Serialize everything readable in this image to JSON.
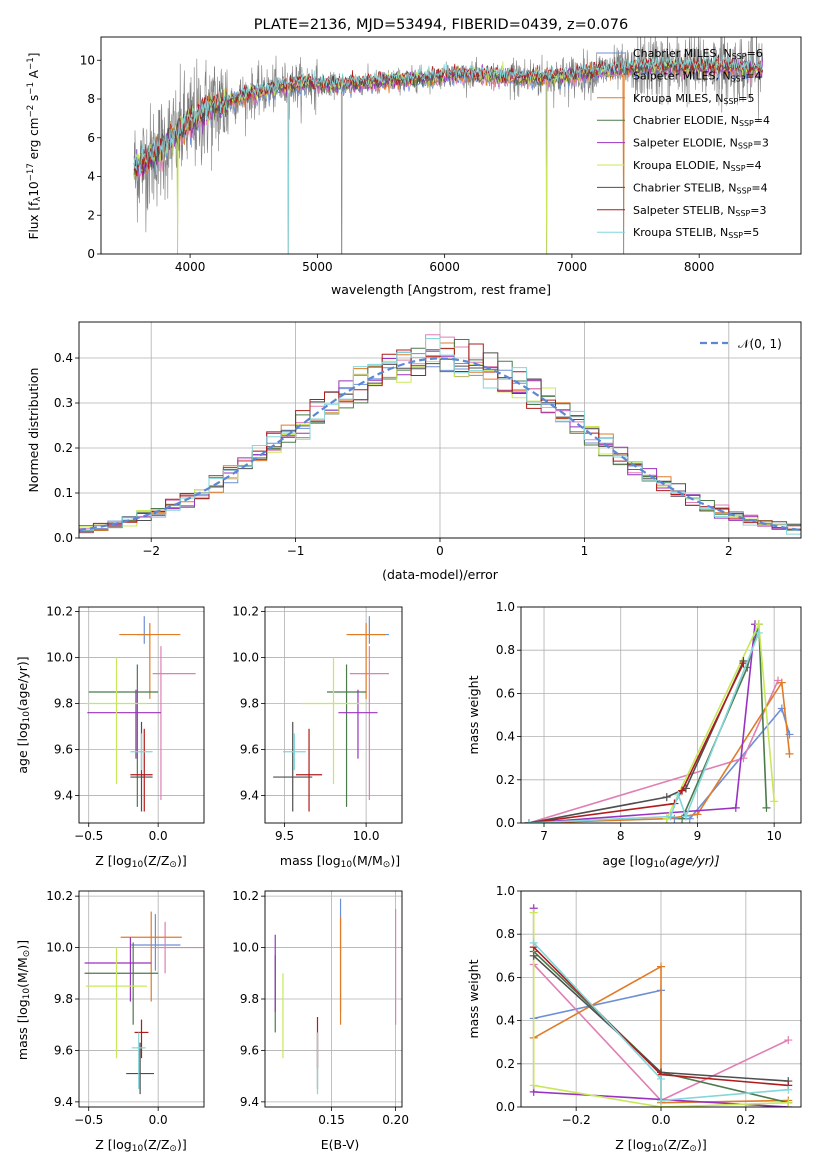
{
  "colors": {
    "Chabrier MILES": "#6d8fd6",
    "Salpeter MILES": "#e07fb4",
    "Kroupa MILES": "#e07b28",
    "Chabrier ELODIE": "#4b7a4b",
    "Salpeter ELODIE": "#9932c0",
    "Kroupa ELODIE": "#c8e85a",
    "Chabrier STELIB": "#4f4f4f",
    "Salpeter STELIB": "#b01c1c",
    "Kroupa STELIB": "#83d6da",
    "data": "#7f7f7f",
    "gauss": "#5b87d5"
  },
  "chart_data": [
    {
      "id": "spectrum",
      "type": "line",
      "title": "PLATE=2136, MJD=53494, FIBERID=0439, z=0.076",
      "xlabel": "wavelength [Angstrom, rest frame]",
      "ylabel_main": "Flux [f",
      "ylabel_sub": "λ",
      "ylabel_rest": "10",
      "ylabel_exp": "−17",
      "ylabel_tail": " erg cm",
      "ylabel_exp2": "−2",
      "ylabel_tail2": " s",
      "ylabel_exp3": "−1",
      "ylabel_tail3": " A",
      "ylabel_exp4": "−1",
      "ylabel_end": "]",
      "xlim": [
        3300,
        8800
      ],
      "ylim": [
        0,
        11.2
      ],
      "xticks": [
        4000,
        5000,
        6000,
        7000,
        8000
      ],
      "yticks": [
        0,
        2,
        4,
        6,
        8,
        10
      ],
      "grid": false,
      "legend_position": "top-right",
      "continuum_x": [
        3560,
        3700,
        3900,
        4100,
        4300,
        4500,
        4700,
        4900,
        5100,
        5300,
        5500,
        5700,
        5900,
        6100,
        6300,
        6500,
        6700,
        6900,
        7100,
        7300,
        7500,
        7700,
        7900,
        8100,
        8300,
        8500
      ],
      "continuum_y": [
        4.4,
        5.0,
        6.2,
        7.3,
        7.9,
        8.3,
        8.6,
        8.8,
        8.7,
        8.8,
        8.9,
        9.0,
        9.1,
        9.3,
        9.2,
        9.1,
        9.1,
        9.1,
        9.3,
        9.5,
        9.6,
        9.7,
        9.6,
        9.7,
        9.6,
        9.5
      ],
      "legend": [
        {
          "label": "Chabrier MILES, N",
          "sub": "SSP",
          "n": "=6"
        },
        {
          "label": "Salpeter MILES, N",
          "sub": "SSP",
          "n": "=4"
        },
        {
          "label": "Kroupa MILES, N",
          "sub": "SSP",
          "n": "=5"
        },
        {
          "label": "Chabrier ELODIE, N",
          "sub": "SSP",
          "n": "=4"
        },
        {
          "label": "Salpeter ELODIE, N",
          "sub": "SSP",
          "n": "=3"
        },
        {
          "label": "Kroupa ELODIE, N",
          "sub": "SSP",
          "n": "=4"
        },
        {
          "label": "Chabrier STELIB, N",
          "sub": "SSP",
          "n": "=4"
        },
        {
          "label": "Salpeter STELIB, N",
          "sub": "SSP",
          "n": "=3"
        },
        {
          "label": "Kroupa STELIB, N",
          "sub": "SSP",
          "n": "=5"
        }
      ]
    },
    {
      "id": "residuals",
      "type": "histogram",
      "xlabel": "(data-model)/error",
      "ylabel": "Normed distribution",
      "xlim": [
        -2.5,
        2.5
      ],
      "ylim": [
        0,
        0.48
      ],
      "xticks": [
        -2,
        -1,
        0,
        1,
        2
      ],
      "yticks": [
        0.0,
        0.1,
        0.2,
        0.3,
        0.4
      ],
      "grid": true,
      "legend_position": "top-right",
      "gauss_label": "𝒩(0, 1)",
      "bin_width": 0.1,
      "bin_start": -2.5
    },
    {
      "id": "age_vs_Z",
      "type": "errorbar",
      "xlabel": "Z [log",
      "xlabel_sub": "10",
      "xlabel_rest": "(Z/Z",
      "xlabel_sub2": "⊙",
      "xlabel_end": ")]",
      "ylabel": "age  [log",
      "ylabel_sub": "10",
      "ylabel_rest": "(age/yr)]",
      "xlim": [
        -0.57,
        0.33
      ],
      "ylim": [
        9.28,
        10.22
      ],
      "xticks": [
        -0.5,
        0.0
      ],
      "yticks": [
        9.4,
        9.6,
        9.8,
        10.0,
        10.2
      ],
      "grid": true,
      "points": [
        {
          "series": "Chabrier MILES",
          "x": -0.1,
          "xerr": [
            0.05,
            0.05
          ],
          "y": 10.1,
          "yerr": [
            0.04,
            0.08
          ]
        },
        {
          "series": "Salpeter MILES",
          "x": 0.02,
          "xerr": [
            0.06,
            0.25
          ],
          "y": 9.93,
          "yerr": [
            0.55,
            0.12
          ]
        },
        {
          "series": "Kroupa MILES",
          "x": -0.06,
          "xerr": [
            0.22,
            0.22
          ],
          "y": 10.1,
          "yerr": [
            0.28,
            0.05
          ]
        },
        {
          "series": "Chabrier ELODIE",
          "x": -0.15,
          "xerr": [
            0.35,
            0.15
          ],
          "y": 9.85,
          "yerr": [
            0.5,
            0.12
          ]
        },
        {
          "series": "Salpeter ELODIE",
          "x": -0.16,
          "xerr": [
            0.35,
            0.18
          ],
          "y": 9.76,
          "yerr": [
            0.2,
            0.1
          ]
        },
        {
          "series": "Kroupa ELODIE",
          "x": -0.3,
          "xerr": [
            0.22,
            0.22
          ],
          "y": 9.8,
          "yerr": [
            0.35,
            0.2
          ]
        },
        {
          "series": "Chabrier STELIB",
          "x": -0.12,
          "xerr": [
            0.08,
            0.08
          ],
          "y": 9.48,
          "yerr": [
            0.15,
            0.24
          ]
        },
        {
          "series": "Salpeter STELIB",
          "x": -0.1,
          "xerr": [
            0.1,
            0.06
          ],
          "y": 9.49,
          "yerr": [
            0.16,
            0.2
          ]
        },
        {
          "series": "Kroupa STELIB",
          "x": -0.12,
          "xerr": [
            0.08,
            0.08
          ],
          "y": 9.59,
          "yerr": [
            0.08,
            0.08
          ]
        }
      ]
    },
    {
      "id": "age_vs_mass",
      "type": "errorbar",
      "xlabel": "mass [log",
      "xlabel_sub": "10",
      "xlabel_rest": "(M/M",
      "xlabel_sub2": "⊙",
      "xlabel_end": ")]",
      "xlim": [
        9.38,
        10.22
      ],
      "ylim": [
        9.28,
        10.22
      ],
      "xticks": [
        9.5,
        10.0
      ],
      "yticks": [
        9.4,
        9.6,
        9.8,
        10.0,
        10.2
      ],
      "grid": true,
      "points": [
        {
          "series": "Chabrier MILES",
          "x": 10.02,
          "xerr": [
            0.12,
            0.12
          ],
          "y": 10.1,
          "yerr": [
            0.04,
            0.08
          ]
        },
        {
          "series": "Salpeter MILES",
          "x": 10.02,
          "xerr": [
            0.12,
            0.12
          ],
          "y": 9.93,
          "yerr": [
            0.55,
            0.12
          ]
        },
        {
          "series": "Kroupa MILES",
          "x": 10.0,
          "xerr": [
            0.12,
            0.12
          ],
          "y": 10.1,
          "yerr": [
            0.28,
            0.05
          ]
        },
        {
          "series": "Chabrier ELODIE",
          "x": 9.88,
          "xerr": [
            0.12,
            0.12
          ],
          "y": 9.85,
          "yerr": [
            0.5,
            0.12
          ]
        },
        {
          "series": "Salpeter ELODIE",
          "x": 9.95,
          "xerr": [
            0.12,
            0.12
          ],
          "y": 9.76,
          "yerr": [
            0.2,
            0.1
          ]
        },
        {
          "series": "Kroupa ELODIE",
          "x": 9.8,
          "xerr": [
            0.2,
            0.2
          ],
          "y": 9.8,
          "yerr": [
            0.35,
            0.2
          ]
        },
        {
          "series": "Chabrier STELIB",
          "x": 9.55,
          "xerr": [
            0.12,
            0.12
          ],
          "y": 9.48,
          "yerr": [
            0.15,
            0.24
          ]
        },
        {
          "series": "Salpeter STELIB",
          "x": 9.65,
          "xerr": [
            0.08,
            0.08
          ],
          "y": 9.49,
          "yerr": [
            0.16,
            0.2
          ]
        },
        {
          "series": "Kroupa STELIB",
          "x": 9.56,
          "xerr": [
            0.07,
            0.07
          ],
          "y": 9.59,
          "yerr": [
            0.08,
            0.08
          ]
        }
      ]
    },
    {
      "id": "weight_vs_age",
      "type": "line",
      "xlabel": "age  [log",
      "xlabel_sub": "10",
      "xlabel_rest": "(age/yr)]",
      "ylabel": "mass weight",
      "xlim": [
        6.7,
        10.35
      ],
      "ylim": [
        0,
        1.0
      ],
      "xticks": [
        7,
        8,
        9,
        10
      ],
      "yticks": [
        0.0,
        0.2,
        0.4,
        0.6,
        0.8,
        1.0
      ],
      "grid": true,
      "series": [
        {
          "name": "Chabrier MILES",
          "x": [
            8.7,
            8.9,
            10.1,
            10.2
          ],
          "y": [
            0.02,
            0.02,
            0.53,
            0.41
          ]
        },
        {
          "name": "Salpeter MILES",
          "x": [
            6.8,
            9.6,
            10.05
          ],
          "y": [
            0.0,
            0.3,
            0.66
          ]
        },
        {
          "name": "Kroupa MILES",
          "x": [
            6.8,
            8.6,
            9.0,
            10.1,
            10.2
          ],
          "y": [
            0.0,
            0.02,
            0.04,
            0.65,
            0.32
          ]
        },
        {
          "name": "Chabrier ELODIE",
          "x": [
            8.8,
            9.65,
            9.8,
            9.9
          ],
          "y": [
            0.02,
            0.72,
            0.92,
            0.07
          ]
        },
        {
          "name": "Salpeter ELODIE",
          "x": [
            6.8,
            9.5,
            9.75
          ],
          "y": [
            0.0,
            0.07,
            0.92
          ]
        },
        {
          "name": "Kroupa ELODIE",
          "x": [
            8.6,
            9.8,
            10.0
          ],
          "y": [
            0.02,
            0.92,
            0.1
          ]
        },
        {
          "name": "Chabrier STELIB",
          "x": [
            6.8,
            8.6,
            8.85,
            9.6
          ],
          "y": [
            0.0,
            0.12,
            0.16,
            0.75
          ]
        },
        {
          "name": "Salpeter STELIB",
          "x": [
            6.8,
            8.7,
            8.8,
            9.6
          ],
          "y": [
            0.0,
            0.09,
            0.15,
            0.74
          ]
        },
        {
          "name": "Kroupa STELIB",
          "x": [
            6.8,
            8.65,
            8.75,
            8.85,
            9.8
          ],
          "y": [
            0.0,
            0.03,
            0.13,
            0.03,
            0.88
          ]
        }
      ]
    },
    {
      "id": "mass_vs_Z",
      "type": "errorbar",
      "xlabel": "Z [log",
      "xlabel_sub": "10",
      "xlabel_rest": "(Z/Z",
      "xlabel_sub2": "⊙",
      "xlabel_end": ")]",
      "ylabel": "mass [log",
      "ylabel_sub": "10",
      "ylabel_rest": "(M/M",
      "ylabel_sub2": "⊙",
      "ylabel_end": ")]",
      "xlim": [
        -0.57,
        0.33
      ],
      "ylim": [
        9.38,
        10.22
      ],
      "xticks": [
        -0.5,
        0.0
      ],
      "yticks": [
        9.4,
        9.6,
        9.8,
        10.0,
        10.2
      ],
      "grid": true,
      "points": [
        {
          "series": "Chabrier MILES",
          "x": -0.02,
          "xerr": [
            0.18,
            0.18
          ],
          "y": 10.01,
          "yerr": [
            0.1,
            0.12
          ]
        },
        {
          "series": "Salpeter MILES",
          "x": 0.05,
          "xerr": [
            0.1,
            0.27
          ],
          "y": 10.0,
          "yerr": [
            0.1,
            0.1
          ]
        },
        {
          "series": "Kroupa MILES",
          "x": -0.05,
          "xerr": [
            0.22,
            0.22
          ],
          "y": 10.04,
          "yerr": [
            0.25,
            0.1
          ]
        },
        {
          "series": "Chabrier ELODIE",
          "x": -0.18,
          "xerr": [
            0.35,
            0.18
          ],
          "y": 9.9,
          "yerr": [
            0.2,
            0.12
          ]
        },
        {
          "series": "Salpeter ELODIE",
          "x": -0.2,
          "xerr": [
            0.33,
            0.15
          ],
          "y": 9.94,
          "yerr": [
            0.15,
            0.1
          ]
        },
        {
          "series": "Kroupa ELODIE",
          "x": -0.3,
          "xerr": [
            0.22,
            0.22
          ],
          "y": 9.85,
          "yerr": [
            0.28,
            0.15
          ]
        },
        {
          "series": "Chabrier STELIB",
          "x": -0.13,
          "xerr": [
            0.1,
            0.1
          ],
          "y": 9.51,
          "yerr": [
            0.08,
            0.12
          ]
        },
        {
          "series": "Salpeter STELIB",
          "x": -0.12,
          "xerr": [
            0.05,
            0.05
          ],
          "y": 9.67,
          "yerr": [
            0.1,
            0.05
          ]
        },
        {
          "series": "Kroupa STELIB",
          "x": -0.14,
          "xerr": [
            0.05,
            0.05
          ],
          "y": 9.61,
          "yerr": [
            0.16,
            0.06
          ]
        }
      ]
    },
    {
      "id": "mass_vs_ebv",
      "type": "errorbar",
      "xlabel": "E(B-V)",
      "xlim": [
        0.098,
        0.205
      ],
      "ylim": [
        9.38,
        10.22
      ],
      "xticks": [
        0.15,
        0.2
      ],
      "xtick_labels": [
        "0.15",
        "0.20"
      ],
      "yticks": [
        9.4,
        9.6,
        9.8,
        10.0,
        10.2
      ],
      "grid": true,
      "points": [
        {
          "series": "Chabrier MILES",
          "x": 0.157,
          "xerr": [
            0,
            0
          ],
          "y": 10.05,
          "yerr": [
            0.3,
            0.14
          ]
        },
        {
          "series": "Salpeter MILES",
          "x": 0.2,
          "xerr": [
            0,
            0
          ],
          "y": 9.95,
          "yerr": [
            0.25,
            0.2
          ]
        },
        {
          "series": "Kroupa MILES",
          "x": 0.157,
          "xerr": [
            0,
            0
          ],
          "y": 10.0,
          "yerr": [
            0.3,
            0.12
          ]
        },
        {
          "series": "Chabrier ELODIE",
          "x": 0.106,
          "xerr": [
            0,
            0
          ],
          "y": 9.85,
          "yerr": [
            0.18,
            0.12
          ]
        },
        {
          "series": "Salpeter ELODIE",
          "x": 0.106,
          "xerr": [
            0,
            0
          ],
          "y": 9.9,
          "yerr": [
            0.15,
            0.15
          ]
        },
        {
          "series": "Kroupa ELODIE",
          "x": 0.112,
          "xerr": [
            0,
            0
          ],
          "y": 9.75,
          "yerr": [
            0.18,
            0.15
          ]
        },
        {
          "series": "Chabrier STELIB",
          "x": 0.139,
          "xerr": [
            0,
            0
          ],
          "y": 9.55,
          "yerr": [
            0.1,
            0.12
          ]
        },
        {
          "series": "Salpeter STELIB",
          "x": 0.139,
          "xerr": [
            0,
            0
          ],
          "y": 9.65,
          "yerr": [
            0.12,
            0.08
          ]
        },
        {
          "series": "Kroupa STELIB",
          "x": 0.139,
          "xerr": [
            0,
            0
          ],
          "y": 9.55,
          "yerr": [
            0.12,
            0.12
          ]
        }
      ]
    },
    {
      "id": "weight_vs_Z",
      "type": "line",
      "xlabel": "Z [log",
      "xlabel_sub": "10",
      "xlabel_rest": "(Z/Z",
      "xlabel_sub2": "⊙",
      "xlabel_end": ")]",
      "ylabel": "mass weight",
      "xlim": [
        -0.33,
        0.33
      ],
      "ylim": [
        0,
        1.0
      ],
      "xticks": [
        -0.2,
        0.0,
        0.2
      ],
      "xtick_labels": [
        "−0.2",
        "0.0",
        "0.2"
      ],
      "yticks": [
        0.0,
        0.2,
        0.4,
        0.6,
        0.8,
        1.0
      ],
      "grid": true,
      "series": [
        {
          "name": "Chabrier MILES",
          "x": [
            -0.3,
            0.0
          ],
          "y": [
            0.41,
            0.54
          ]
        },
        {
          "name": "Salpeter MILES",
          "x": [
            -0.3,
            0.0,
            0.3
          ],
          "y": [
            0.66,
            0.03,
            0.31
          ]
        },
        {
          "name": "Kroupa MILES",
          "x": [
            -0.3,
            0.0,
            0.0,
            0.3
          ],
          "y": [
            0.32,
            0.65,
            0.02,
            0.03
          ]
        },
        {
          "name": "Chabrier ELODIE",
          "x": [
            -0.3,
            0.0,
            0.3
          ],
          "y": [
            0.72,
            0.16,
            0.02
          ]
        },
        {
          "name": "Salpeter ELODIE",
          "x": [
            -0.3,
            -0.3,
            0.3
          ],
          "y": [
            0.92,
            0.07,
            0.0
          ]
        },
        {
          "name": "Kroupa ELODIE",
          "x": [
            -0.3,
            -0.3,
            0.0,
            0.3
          ],
          "y": [
            0.9,
            0.1,
            0.0,
            0.02
          ]
        },
        {
          "name": "Chabrier STELIB",
          "x": [
            -0.3,
            0.0,
            0.3
          ],
          "y": [
            0.7,
            0.16,
            0.12
          ]
        },
        {
          "name": "Salpeter STELIB",
          "x": [
            -0.3,
            0.0,
            0.3
          ],
          "y": [
            0.74,
            0.15,
            0.1
          ]
        },
        {
          "name": "Kroupa STELIB",
          "x": [
            -0.3,
            0.0,
            0.0,
            0.3
          ],
          "y": [
            0.76,
            0.13,
            0.03,
            0.08
          ]
        }
      ]
    }
  ]
}
